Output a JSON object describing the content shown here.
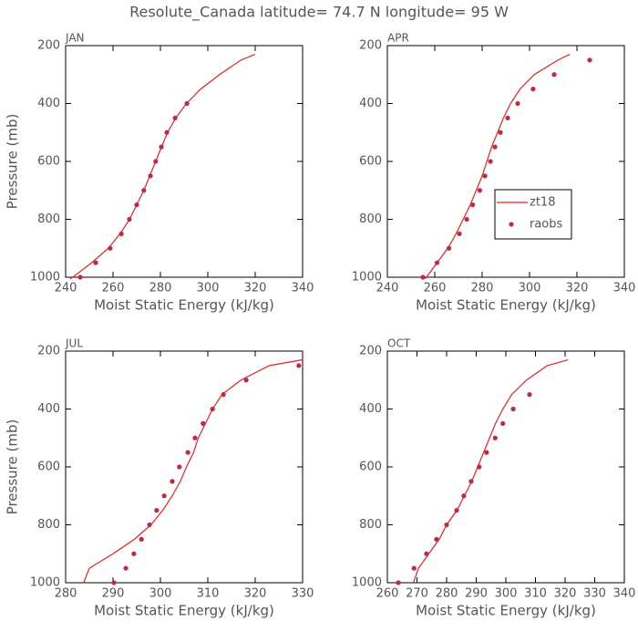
{
  "title": "Resolute_Canada  latitude= 74.7 N longitude= 95 W",
  "chart_data": [
    {
      "type": "line",
      "panel_label": "JAN",
      "x_label": "Moist Static Energy (kJ/kg)",
      "y_label": "Pressure (mb)",
      "xlim": [
        240,
        340
      ],
      "xticks": [
        240,
        260,
        280,
        300,
        320,
        340
      ],
      "ylim": [
        1000,
        200
      ],
      "yticks": [
        200,
        400,
        600,
        800,
        1000
      ],
      "series": [
        {
          "name": "zt18",
          "color": "#e8221e",
          "style": "line",
          "x": [
            242,
            243,
            251,
            258,
            263,
            267,
            270,
            273,
            275.5,
            278,
            280.5,
            283,
            286.5,
            291,
            297,
            305,
            314,
            320
          ],
          "y": [
            1005,
            1000,
            950,
            900,
            850,
            800,
            750,
            700,
            650,
            600,
            550,
            500,
            450,
            400,
            350,
            300,
            250,
            230
          ]
        },
        {
          "name": "raobs",
          "color": "#c0284a",
          "style": "dots",
          "x": [
            246.2,
            252.7,
            258.8,
            263.5,
            266.9,
            270,
            273,
            275.8,
            278,
            280.4,
            282.7,
            286.2,
            291.2
          ],
          "y": [
            1000,
            950,
            900,
            850,
            800,
            750,
            700,
            650,
            600,
            550,
            500,
            450,
            400
          ]
        }
      ]
    },
    {
      "type": "line",
      "panel_label": "APR",
      "x_label": "Moist Static Energy (kJ/kg)",
      "legend": "right",
      "xlim": [
        240,
        340
      ],
      "xticks": [
        240,
        260,
        280,
        300,
        320,
        340
      ],
      "ylim": [
        1000,
        200
      ],
      "yticks": [
        200,
        400,
        600,
        800,
        1000
      ],
      "series": [
        {
          "name": "zt18",
          "color": "#e8221e",
          "style": "line",
          "x": [
            256,
            256.5,
            261,
            265.5,
            269,
            272,
            275,
            277.5,
            280,
            282,
            284,
            286.5,
            289,
            292,
            296,
            302,
            312,
            317
          ],
          "y": [
            1005,
            1000,
            950,
            900,
            850,
            800,
            750,
            700,
            650,
            600,
            550,
            500,
            450,
            400,
            350,
            300,
            250,
            230
          ]
        },
        {
          "name": "raobs",
          "color": "#c0284a",
          "style": "dots",
          "x": [
            255,
            261,
            266,
            270.4,
            273.5,
            276,
            279,
            281.2,
            283.5,
            285.4,
            287.7,
            290.8,
            295,
            301.5,
            310.4,
            325.4
          ],
          "y": [
            1000,
            950,
            900,
            850,
            800,
            750,
            700,
            650,
            600,
            550,
            500,
            450,
            400,
            350,
            300,
            250
          ]
        }
      ]
    },
    {
      "type": "line",
      "panel_label": "JUL",
      "x_label": "Moist Static Energy (kJ/kg)",
      "y_label": "Pressure (mb)",
      "xlim": [
        280,
        330
      ],
      "xticks": [
        280,
        290,
        300,
        310,
        320,
        330
      ],
      "ylim": [
        1000,
        200
      ],
      "yticks": [
        200,
        400,
        600,
        800,
        1000
      ],
      "series": [
        {
          "name": "zt18",
          "color": "#e8221e",
          "style": "line",
          "x": [
            283.8,
            285,
            290,
            294.5,
            298,
            300.5,
            302.5,
            304.2,
            305.5,
            307,
            308,
            309.5,
            311,
            313,
            317,
            323,
            330
          ],
          "y": [
            1000,
            950,
            900,
            850,
            800,
            750,
            700,
            650,
            600,
            550,
            500,
            450,
            400,
            350,
            300,
            250,
            230
          ]
        },
        {
          "name": "raobs",
          "color": "#c0284a",
          "style": "dots",
          "x": [
            290.2,
            292.7,
            294.4,
            296,
            297.7,
            299.2,
            300.8,
            302.5,
            304,
            305.8,
            307.3,
            309,
            311,
            313.3,
            318.1,
            329.2
          ],
          "y": [
            1000,
            950,
            900,
            850,
            800,
            750,
            700,
            650,
            600,
            550,
            500,
            450,
            400,
            350,
            300,
            250
          ]
        }
      ]
    },
    {
      "type": "line",
      "panel_label": "OCT",
      "x_label": "Moist Static Energy (kJ/kg)",
      "xlim": [
        260,
        340
      ],
      "xticks": [
        260,
        270,
        280,
        290,
        300,
        310,
        320,
        330,
        340
      ],
      "ylim": [
        1000,
        200
      ],
      "yticks": [
        200,
        400,
        600,
        800,
        1000
      ],
      "series": [
        {
          "name": "zt18",
          "color": "#e8221e",
          "style": "line",
          "x": [
            268.8,
            270.5,
            274,
            277.5,
            280,
            283.5,
            286,
            288.5,
            290.5,
            292.5,
            294.5,
            296.5,
            299,
            302,
            307,
            314,
            321
          ],
          "y": [
            1000,
            950,
            900,
            850,
            800,
            750,
            700,
            650,
            600,
            550,
            500,
            450,
            400,
            350,
            300,
            250,
            230
          ]
        },
        {
          "name": "raobs",
          "color": "#c0284a",
          "style": "dots",
          "x": [
            263.7,
            269,
            273.2,
            276.6,
            280,
            283.4,
            285.8,
            288.3,
            291,
            293.5,
            296.4,
            299,
            302.5,
            308
          ],
          "y": [
            1000,
            950,
            900,
            850,
            800,
            750,
            700,
            650,
            600,
            550,
            500,
            450,
            400,
            350
          ]
        }
      ]
    }
  ]
}
